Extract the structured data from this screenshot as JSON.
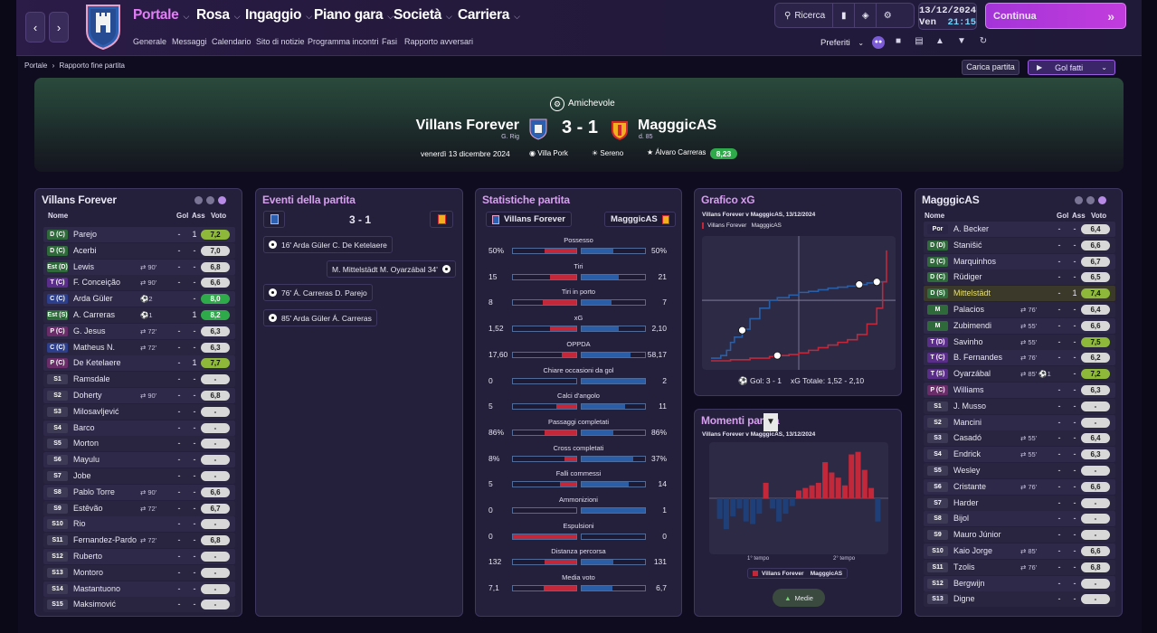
{
  "topnav": {
    "menus": [
      "Portale",
      "Rosa",
      "Ingaggio",
      "Piano gara",
      "Società",
      "Carriera"
    ],
    "submenu": [
      "Generale",
      "Messaggi",
      "Calendario",
      "Sito di notizie",
      "Programma incontri",
      "Fasi",
      "Rapporto avversari"
    ],
    "search": "Ricerca",
    "date": "13/12/2024",
    "day": "Ven",
    "time": "21:15",
    "continue": "Continua",
    "favourites": "Preferiti"
  },
  "breadcrumb": {
    "root": "Portale",
    "current": "Rapporto fine partita"
  },
  "actions": {
    "load_match": "Carica partita",
    "highlights": "Gol fatti"
  },
  "match": {
    "competition": "Amichevole",
    "home": "Villans Forever",
    "home_rating_label": "G. Rig",
    "away": "MagggicAS",
    "away_rating_label": "d. 85",
    "score": "3 - 1",
    "date": "venerdì 13 dicembre 2024",
    "stadium": "Villa Pork",
    "weather": "Sereno",
    "potm": "Álvaro Carreras",
    "potm_rating": "8,23"
  },
  "home_panel": {
    "title": "Villans Forever",
    "headers": {
      "name": "Nome",
      "goals": "Gol",
      "assists": "Ass",
      "rating": "Voto"
    },
    "players": [
      {
        "pos": "D (C)",
        "name": "Parejo",
        "sub": "",
        "gol": "-",
        "ass": "1",
        "voto": "7,2",
        "vc": "green2",
        "pc": "#2e6a3a"
      },
      {
        "pos": "D (C)",
        "name": "Acerbi",
        "sub": "",
        "gol": "-",
        "ass": "-",
        "voto": "7,0",
        "vc": "light",
        "pc": "#2e6a3a"
      },
      {
        "pos": "Est (D)",
        "name": "Lewis",
        "sub": "⇄ 90'",
        "gol": "-",
        "ass": "-",
        "voto": "6,8",
        "vc": "light",
        "pc": "#2e6a3a"
      },
      {
        "pos": "T (C)",
        "name": "F. Conceição",
        "sub": "⇄ 90'",
        "gol": "-",
        "ass": "-",
        "voto": "6,6",
        "vc": "light",
        "pc": "#5a2d8a"
      },
      {
        "pos": "C (C)",
        "name": "Arda Güler",
        "sub": "⚽2",
        "gol": "",
        "ass": "-",
        "voto": "8,0",
        "vc": "green",
        "pc": "#2d3f8a"
      },
      {
        "pos": "Est (S)",
        "name": "A. Carreras",
        "sub": "⚽1",
        "gol": "",
        "ass": "1",
        "voto": "8,2",
        "vc": "green",
        "pc": "#2e6a3a"
      },
      {
        "pos": "P (C)",
        "name": "G. Jesus",
        "sub": "⇄ 72'",
        "gol": "-",
        "ass": "-",
        "voto": "6,3",
        "vc": "light",
        "pc": "#6a2d6a"
      },
      {
        "pos": "C (C)",
        "name": "Matheus N.",
        "sub": "⇄ 72'",
        "gol": "-",
        "ass": "-",
        "voto": "6,3",
        "vc": "light",
        "pc": "#2d3f8a"
      },
      {
        "pos": "P (C)",
        "name": "De Ketelaere",
        "sub": "",
        "gol": "-",
        "ass": "1",
        "voto": "7,7",
        "vc": "green2",
        "pc": "#6a2d6a"
      },
      {
        "pos": "S1",
        "name": "Ramsdale",
        "sub": "",
        "gol": "-",
        "ass": "-",
        "voto": "-",
        "vc": "light",
        "pc": "#3d3a55"
      },
      {
        "pos": "S2",
        "name": "Doherty",
        "sub": "⇄ 90'",
        "gol": "-",
        "ass": "-",
        "voto": "6,8",
        "vc": "light",
        "pc": "#3d3a55"
      },
      {
        "pos": "S3",
        "name": "Milosavljević",
        "sub": "",
        "gol": "-",
        "ass": "-",
        "voto": "-",
        "vc": "light",
        "pc": "#3d3a55"
      },
      {
        "pos": "S4",
        "name": "Barco",
        "sub": "",
        "gol": "-",
        "ass": "-",
        "voto": "-",
        "vc": "light",
        "pc": "#3d3a55"
      },
      {
        "pos": "S5",
        "name": "Morton",
        "sub": "",
        "gol": "-",
        "ass": "-",
        "voto": "-",
        "vc": "light",
        "pc": "#3d3a55"
      },
      {
        "pos": "S6",
        "name": "Mayulu",
        "sub": "",
        "gol": "-",
        "ass": "-",
        "voto": "-",
        "vc": "light",
        "pc": "#3d3a55"
      },
      {
        "pos": "S7",
        "name": "Jobe",
        "sub": "",
        "gol": "-",
        "ass": "-",
        "voto": "-",
        "vc": "light",
        "pc": "#3d3a55"
      },
      {
        "pos": "S8",
        "name": "Pablo Torre",
        "sub": "⇄ 90'",
        "gol": "-",
        "ass": "-",
        "voto": "6,6",
        "vc": "light",
        "pc": "#3d3a55"
      },
      {
        "pos": "S9",
        "name": "Estêvão",
        "sub": "⇄ 72'",
        "gol": "-",
        "ass": "-",
        "voto": "6,7",
        "vc": "light",
        "pc": "#3d3a55"
      },
      {
        "pos": "S10",
        "name": "Rio",
        "sub": "",
        "gol": "-",
        "ass": "-",
        "voto": "-",
        "vc": "light",
        "pc": "#3d3a55"
      },
      {
        "pos": "S11",
        "name": "Fernandez-Pardo",
        "sub": "⇄ 72'",
        "gol": "-",
        "ass": "-",
        "voto": "6,8",
        "vc": "light",
        "pc": "#3d3a55"
      },
      {
        "pos": "S12",
        "name": "Ruberto",
        "sub": "",
        "gol": "-",
        "ass": "-",
        "voto": "-",
        "vc": "light",
        "pc": "#3d3a55"
      },
      {
        "pos": "S13",
        "name": "Montoro",
        "sub": "",
        "gol": "-",
        "ass": "-",
        "voto": "-",
        "vc": "light",
        "pc": "#3d3a55"
      },
      {
        "pos": "S14",
        "name": "Mastantuono",
        "sub": "",
        "gol": "-",
        "ass": "-",
        "voto": "-",
        "vc": "light",
        "pc": "#3d3a55"
      },
      {
        "pos": "S15",
        "name": "Maksimović",
        "sub": "",
        "gol": "-",
        "ass": "-",
        "voto": "-",
        "vc": "light",
        "pc": "#3d3a55"
      }
    ]
  },
  "events_panel": {
    "title": "Eventi della partita",
    "score": "3 - 1",
    "events": [
      {
        "side": "home",
        "text": "16'  Arda Güler  C. De Ketelaere"
      },
      {
        "side": "away",
        "text": "M. Mittelstädt  M. Oyarzábal  34'"
      },
      {
        "side": "home",
        "text": "76'  Á. Carreras  D. Parejo"
      },
      {
        "side": "home",
        "text": "85'  Arda Güler  Á. Carreras"
      }
    ]
  },
  "stats_panel": {
    "title": "Statistiche partita",
    "home": "Villans Forever",
    "away": "MagggicAS",
    "stats": [
      {
        "label": "Possesso",
        "h": "50%",
        "a": "50%",
        "hf": 0.5,
        "af": 0.5
      },
      {
        "label": "Tiri",
        "h": "15",
        "a": "21",
        "hf": 0.42,
        "af": 0.58
      },
      {
        "label": "Tiri in porto",
        "h": "8",
        "a": "7",
        "hf": 0.53,
        "af": 0.47
      },
      {
        "label": "xG",
        "h": "1,52",
        "a": "2,10",
        "hf": 0.42,
        "af": 0.58
      },
      {
        "label": "OPPDA",
        "h": "17,60",
        "a": "58,17",
        "hf": 0.23,
        "af": 0.77
      },
      {
        "label": "Chiare occasioni da gol",
        "h": "0",
        "a": "2",
        "hf": 0,
        "af": 1
      },
      {
        "label": "Calci d'angolo",
        "h": "5",
        "a": "11",
        "hf": 0.31,
        "af": 0.69
      },
      {
        "label": "Passaggi completati",
        "h": "86%",
        "a": "86%",
        "hf": 0.5,
        "af": 0.5
      },
      {
        "label": "Cross completati",
        "h": "8%",
        "a": "37%",
        "hf": 0.18,
        "af": 0.82
      },
      {
        "label": "Falli commessi",
        "h": "5",
        "a": "14",
        "hf": 0.26,
        "af": 0.74
      },
      {
        "label": "Ammonizioni",
        "h": "0",
        "a": "1",
        "hf": 0,
        "af": 1
      },
      {
        "label": "Espulsioni",
        "h": "0",
        "a": "0",
        "hf": 1,
        "af": 0
      },
      {
        "label": "Distanza percorsa",
        "h": "132",
        "a": "131",
        "hf": 0.5,
        "af": 0.5
      },
      {
        "label": "Media voto",
        "h": "7,1",
        "a": "6,7",
        "hf": 0.51,
        "af": 0.49
      }
    ]
  },
  "xg_panel": {
    "title": "Grafico xG",
    "subtitle": "Villans Forever v MagggicAS, 13/12/2024",
    "legend_home": "Villans Forever",
    "legend_away": "MagggicAS",
    "footer_goals": "Gol:  3 - 1",
    "footer_xg": "xG  Totale:  1,52  -  2,10"
  },
  "momentum_panel": {
    "title": "Momenti partita",
    "subtitle": "Villans Forever v MagggicAS, 13/12/2024",
    "first_half": "1° tempo",
    "second_half": "2° tempo",
    "legend_home": "Villans Forever",
    "legend_away": "MagggicAS",
    "toggle": "Medie"
  },
  "chart_data": [
    {
      "type": "line",
      "series": [
        {
          "name": "Villans Forever",
          "x": [
            0,
            5,
            8,
            10,
            12,
            16,
            20,
            25,
            30,
            34,
            40,
            45,
            50,
            55,
            60,
            65,
            70,
            76,
            80,
            85,
            90
          ],
          "y": [
            0.05,
            0.1,
            0.2,
            0.35,
            0.45,
            0.6,
            0.8,
            1.0,
            1.15,
            1.2,
            1.25,
            1.3,
            1.32,
            1.35,
            1.38,
            1.4,
            1.42,
            1.45,
            1.48,
            1.5,
            1.52
          ]
        },
        {
          "name": "MagggicAS",
          "x": [
            0,
            10,
            20,
            30,
            34,
            40,
            45,
            50,
            55,
            60,
            65,
            70,
            75,
            80,
            85,
            88,
            90
          ],
          "y": [
            0.0,
            0.02,
            0.05,
            0.08,
            0.1,
            0.12,
            0.15,
            0.2,
            0.25,
            0.3,
            0.35,
            0.4,
            0.5,
            0.7,
            1.0,
            1.5,
            2.1
          ]
        }
      ]
    },
    {
      "type": "bar",
      "values": [
        -0.4,
        -0.6,
        -0.35,
        -0.2,
        -0.45,
        -0.5,
        -0.3,
        0.3,
        -0.2,
        -0.45,
        -0.3,
        -0.15,
        0.15,
        0.2,
        0.25,
        0.3,
        0.7,
        0.5,
        0.4,
        0.25,
        0.85,
        0.9,
        0.55,
        0.2,
        -0.45
      ]
    }
  ],
  "away_panel": {
    "title": "MagggicAS",
    "headers": {
      "name": "Nome",
      "goals": "Gol",
      "assists": "Ass",
      "rating": "Voto"
    },
    "players": [
      {
        "pos": "Por",
        "name": "A. Becker",
        "sub": "",
        "gol": "-",
        "ass": "-",
        "voto": "6,4",
        "vc": "light",
        "pc": "#2a2545"
      },
      {
        "pos": "D (D)",
        "name": "Stanišić",
        "sub": "",
        "gol": "-",
        "ass": "-",
        "voto": "6,6",
        "vc": "light",
        "pc": "#2e6a3a"
      },
      {
        "pos": "D (C)",
        "name": "Marquinhos",
        "sub": "",
        "gol": "-",
        "ass": "-",
        "voto": "6,7",
        "vc": "light",
        "pc": "#2e6a3a"
      },
      {
        "pos": "D (C)",
        "name": "Rüdiger",
        "sub": "",
        "gol": "-",
        "ass": "-",
        "voto": "6,5",
        "vc": "light",
        "pc": "#2e6a3a"
      },
      {
        "pos": "D (S)",
        "name": "Mittelstädt",
        "sub": "",
        "gol": "-",
        "ass": "1",
        "voto": "7,4",
        "vc": "green2",
        "pc": "#2e6a3a",
        "hl": true
      },
      {
        "pos": "M",
        "name": "Palacios",
        "sub": "⇄ 76'",
        "gol": "-",
        "ass": "-",
        "voto": "6,4",
        "vc": "light",
        "pc": "#2e6a3a"
      },
      {
        "pos": "M",
        "name": "Zubimendi",
        "sub": "⇄ 55'",
        "gol": "-",
        "ass": "-",
        "voto": "6,6",
        "vc": "light",
        "pc": "#2e6a3a"
      },
      {
        "pos": "T (D)",
        "name": "Savinho",
        "sub": "⇄ 55'",
        "gol": "-",
        "ass": "-",
        "voto": "7,5",
        "vc": "green2",
        "pc": "#5a2d8a"
      },
      {
        "pos": "T (C)",
        "name": "B. Fernandes",
        "sub": "⇄ 76'",
        "gol": "-",
        "ass": "-",
        "voto": "6,2",
        "vc": "light",
        "pc": "#5a2d8a"
      },
      {
        "pos": "T (S)",
        "name": "Oyarzábal",
        "sub": "⇄ 85' ⚽1",
        "gol": "",
        "ass": "-",
        "voto": "7,2",
        "vc": "green2",
        "pc": "#5a2d8a"
      },
      {
        "pos": "P (C)",
        "name": "Williams",
        "sub": "",
        "gol": "-",
        "ass": "-",
        "voto": "6,3",
        "vc": "light",
        "pc": "#6a2d6a"
      },
      {
        "pos": "S1",
        "name": "J. Musso",
        "sub": "",
        "gol": "-",
        "ass": "-",
        "voto": "-",
        "vc": "light",
        "pc": "#3d3a55"
      },
      {
        "pos": "S2",
        "name": "Mancini",
        "sub": "",
        "gol": "-",
        "ass": "-",
        "voto": "-",
        "vc": "light",
        "pc": "#3d3a55"
      },
      {
        "pos": "S3",
        "name": "Casadó",
        "sub": "⇄ 55'",
        "gol": "-",
        "ass": "-",
        "voto": "6,4",
        "vc": "light",
        "pc": "#3d3a55"
      },
      {
        "pos": "S4",
        "name": "Endrick",
        "sub": "⇄ 55'",
        "gol": "-",
        "ass": "-",
        "voto": "6,3",
        "vc": "light",
        "pc": "#3d3a55"
      },
      {
        "pos": "S5",
        "name": "Wesley",
        "sub": "",
        "gol": "-",
        "ass": "-",
        "voto": "-",
        "vc": "light",
        "pc": "#3d3a55"
      },
      {
        "pos": "S6",
        "name": "Cristante",
        "sub": "⇄ 76'",
        "gol": "-",
        "ass": "-",
        "voto": "6,6",
        "vc": "light",
        "pc": "#3d3a55"
      },
      {
        "pos": "S7",
        "name": "Harder",
        "sub": "",
        "gol": "-",
        "ass": "-",
        "voto": "-",
        "vc": "light",
        "pc": "#3d3a55"
      },
      {
        "pos": "S8",
        "name": "Bijol",
        "sub": "",
        "gol": "-",
        "ass": "-",
        "voto": "-",
        "vc": "light",
        "pc": "#3d3a55"
      },
      {
        "pos": "S9",
        "name": "Mauro Júnior",
        "sub": "",
        "gol": "-",
        "ass": "-",
        "voto": "-",
        "vc": "light",
        "pc": "#3d3a55"
      },
      {
        "pos": "S10",
        "name": "Kaio Jorge",
        "sub": "⇄ 85'",
        "gol": "-",
        "ass": "-",
        "voto": "6,6",
        "vc": "light",
        "pc": "#3d3a55"
      },
      {
        "pos": "S11",
        "name": "Tzolis",
        "sub": "⇄ 76'",
        "gol": "-",
        "ass": "-",
        "voto": "6,8",
        "vc": "light",
        "pc": "#3d3a55"
      },
      {
        "pos": "S12",
        "name": "Bergwijn",
        "sub": "",
        "gol": "-",
        "ass": "-",
        "voto": "-",
        "vc": "light",
        "pc": "#3d3a55"
      },
      {
        "pos": "S13",
        "name": "Digne",
        "sub": "",
        "gol": "-",
        "ass": "-",
        "voto": "-",
        "vc": "light",
        "pc": "#3d3a55"
      }
    ]
  },
  "colors": {
    "home": "#2a5fa8",
    "away": "#c2283a",
    "accent": "#b03ad8",
    "rating_green": "#2eaa4a",
    "rating_green2": "#8db83a"
  }
}
